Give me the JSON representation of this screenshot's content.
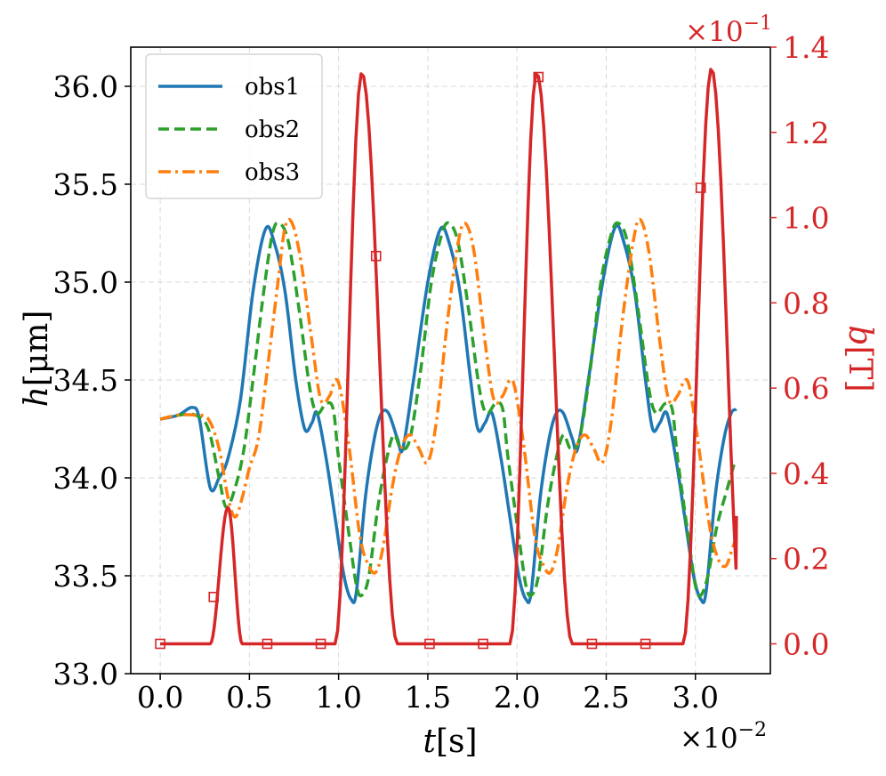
{
  "chart_data": {
    "type": "line",
    "title": "",
    "xlabel": {
      "var": "t",
      "unit": "[s]"
    },
    "ylabel_left": {
      "var": "h",
      "unit": "[μm]"
    },
    "ylabel_right": {
      "var": "b",
      "unit": "[T]"
    },
    "x_scale_label": "×10",
    "x_scale_exp": "−2",
    "y_right_scale_label": "×10",
    "y_right_scale_exp": "−1",
    "xlim": [
      -0.165,
      3.42
    ],
    "ylim_left": [
      33.0,
      36.2
    ],
    "ylim_right": [
      -0.07,
      1.4
    ],
    "x_ticks": [
      0.0,
      0.5,
      1.0,
      1.5,
      2.0,
      2.5,
      3.0
    ],
    "x_tick_labels": [
      "0.0",
      "0.5",
      "1.0",
      "1.5",
      "2.0",
      "2.5",
      "3.0"
    ],
    "y_left_ticks": [
      33.0,
      33.5,
      34.0,
      34.5,
      35.0,
      35.5,
      36.0
    ],
    "y_left_tick_labels": [
      "33.0",
      "33.5",
      "34.0",
      "34.5",
      "35.0",
      "35.5",
      "36.0"
    ],
    "y_right_ticks": [
      0.0,
      0.2,
      0.4,
      0.6,
      0.8,
      1.0,
      1.2,
      1.4
    ],
    "y_right_tick_labels": [
      "0.0",
      "0.2",
      "0.4",
      "0.6",
      "0.8",
      "1.0",
      "1.2",
      "1.4"
    ],
    "grid": true,
    "legend_position": "upper-left",
    "colors": {
      "obs1": "#1f77b4",
      "obs2": "#2ca02c",
      "obs3": "#ff7f0e",
      "b": "#d62728",
      "grid": "#d9d9d9"
    },
    "series_left": [
      {
        "name": "obs1",
        "style": "solid",
        "points": [
          [
            0.0,
            34.3
          ],
          [
            0.1,
            34.32
          ],
          [
            0.18,
            34.36
          ],
          [
            0.22,
            34.3
          ],
          [
            0.28,
            33.95
          ],
          [
            0.33,
            34.0
          ],
          [
            0.38,
            34.1
          ],
          [
            0.45,
            34.4
          ],
          [
            0.52,
            34.95
          ],
          [
            0.59,
            35.27
          ],
          [
            0.64,
            35.2
          ],
          [
            0.7,
            34.95
          ],
          [
            0.76,
            34.5
          ],
          [
            0.81,
            34.25
          ],
          [
            0.85,
            34.28
          ],
          [
            0.88,
            34.33
          ],
          [
            0.93,
            34.1
          ],
          [
            0.98,
            33.8
          ],
          [
            1.03,
            33.5
          ],
          [
            1.07,
            33.38
          ],
          [
            1.1,
            33.42
          ],
          [
            1.15,
            33.9
          ],
          [
            1.2,
            34.2
          ],
          [
            1.24,
            34.33
          ],
          [
            1.28,
            34.33
          ],
          [
            1.33,
            34.2
          ],
          [
            1.36,
            34.15
          ],
          [
            1.42,
            34.5
          ],
          [
            1.5,
            35.0
          ],
          [
            1.57,
            35.27
          ],
          [
            1.62,
            35.2
          ],
          [
            1.68,
            34.95
          ],
          [
            1.74,
            34.5
          ],
          [
            1.78,
            34.25
          ],
          [
            1.82,
            34.28
          ],
          [
            1.86,
            34.33
          ],
          [
            1.91,
            34.1
          ],
          [
            1.96,
            33.8
          ],
          [
            2.01,
            33.5
          ],
          [
            2.05,
            33.38
          ],
          [
            2.08,
            33.42
          ],
          [
            2.13,
            33.9
          ],
          [
            2.18,
            34.2
          ],
          [
            2.22,
            34.33
          ],
          [
            2.26,
            34.33
          ],
          [
            2.31,
            34.2
          ],
          [
            2.34,
            34.15
          ],
          [
            2.4,
            34.5
          ],
          [
            2.48,
            35.0
          ],
          [
            2.55,
            35.28
          ],
          [
            2.6,
            35.2
          ],
          [
            2.66,
            34.95
          ],
          [
            2.72,
            34.5
          ],
          [
            2.76,
            34.25
          ],
          [
            2.8,
            34.28
          ],
          [
            2.84,
            34.33
          ],
          [
            2.89,
            34.1
          ],
          [
            2.94,
            33.8
          ],
          [
            2.99,
            33.5
          ],
          [
            3.03,
            33.38
          ],
          [
            3.06,
            33.42
          ],
          [
            3.11,
            33.9
          ],
          [
            3.16,
            34.2
          ],
          [
            3.2,
            34.33
          ],
          [
            3.23,
            34.35
          ]
        ]
      },
      {
        "name": "obs2",
        "style": "dashed",
        "points": [
          [
            0.0,
            34.3
          ],
          [
            0.1,
            34.32
          ],
          [
            0.2,
            34.32
          ],
          [
            0.27,
            34.25
          ],
          [
            0.33,
            34.0
          ],
          [
            0.37,
            33.85
          ],
          [
            0.42,
            33.95
          ],
          [
            0.47,
            34.15
          ],
          [
            0.52,
            34.5
          ],
          [
            0.58,
            34.95
          ],
          [
            0.63,
            35.25
          ],
          [
            0.67,
            35.3
          ],
          [
            0.72,
            35.2
          ],
          [
            0.78,
            34.85
          ],
          [
            0.84,
            34.45
          ],
          [
            0.88,
            34.33
          ],
          [
            0.93,
            34.38
          ],
          [
            0.97,
            34.35
          ],
          [
            1.0,
            34.1
          ],
          [
            1.06,
            33.7
          ],
          [
            1.1,
            33.45
          ],
          [
            1.13,
            33.4
          ],
          [
            1.17,
            33.5
          ],
          [
            1.22,
            33.85
          ],
          [
            1.27,
            34.1
          ],
          [
            1.31,
            34.22
          ],
          [
            1.35,
            34.15
          ],
          [
            1.4,
            34.2
          ],
          [
            1.46,
            34.55
          ],
          [
            1.52,
            35.0
          ],
          [
            1.58,
            35.25
          ],
          [
            1.62,
            35.3
          ],
          [
            1.67,
            35.2
          ],
          [
            1.73,
            34.85
          ],
          [
            1.79,
            34.45
          ],
          [
            1.83,
            34.33
          ],
          [
            1.88,
            34.38
          ],
          [
            1.92,
            34.35
          ],
          [
            1.95,
            34.1
          ],
          [
            2.01,
            33.7
          ],
          [
            2.05,
            33.45
          ],
          [
            2.08,
            33.4
          ],
          [
            2.12,
            33.5
          ],
          [
            2.17,
            33.85
          ],
          [
            2.22,
            34.1
          ],
          [
            2.26,
            34.22
          ],
          [
            2.3,
            34.15
          ],
          [
            2.35,
            34.2
          ],
          [
            2.41,
            34.55
          ],
          [
            2.47,
            35.0
          ],
          [
            2.53,
            35.25
          ],
          [
            2.57,
            35.3
          ],
          [
            2.62,
            35.2
          ],
          [
            2.68,
            34.85
          ],
          [
            2.74,
            34.45
          ],
          [
            2.78,
            34.33
          ],
          [
            2.83,
            34.38
          ],
          [
            2.87,
            34.35
          ],
          [
            2.9,
            34.1
          ],
          [
            2.96,
            33.7
          ],
          [
            3.0,
            33.45
          ],
          [
            3.03,
            33.4
          ],
          [
            3.07,
            33.5
          ],
          [
            3.12,
            33.75
          ],
          [
            3.18,
            33.95
          ],
          [
            3.22,
            34.08
          ]
        ]
      },
      {
        "name": "obs3",
        "style": "dashdot",
        "points": [
          [
            0.0,
            34.3
          ],
          [
            0.1,
            34.32
          ],
          [
            0.2,
            34.32
          ],
          [
            0.27,
            34.3
          ],
          [
            0.33,
            34.15
          ],
          [
            0.38,
            33.9
          ],
          [
            0.42,
            33.8
          ],
          [
            0.46,
            33.9
          ],
          [
            0.5,
            34.05
          ],
          [
            0.55,
            34.2
          ],
          [
            0.6,
            34.55
          ],
          [
            0.66,
            35.0
          ],
          [
            0.7,
            35.28
          ],
          [
            0.74,
            35.3
          ],
          [
            0.79,
            35.1
          ],
          [
            0.85,
            34.7
          ],
          [
            0.9,
            34.4
          ],
          [
            0.95,
            34.42
          ],
          [
            0.98,
            34.5
          ],
          [
            1.01,
            34.45
          ],
          [
            1.06,
            34.15
          ],
          [
            1.12,
            33.7
          ],
          [
            1.17,
            33.55
          ],
          [
            1.21,
            33.52
          ],
          [
            1.25,
            33.65
          ],
          [
            1.3,
            33.95
          ],
          [
            1.35,
            34.15
          ],
          [
            1.4,
            34.22
          ],
          [
            1.45,
            34.15
          ],
          [
            1.5,
            34.08
          ],
          [
            1.55,
            34.3
          ],
          [
            1.61,
            34.8
          ],
          [
            1.67,
            35.2
          ],
          [
            1.71,
            35.3
          ],
          [
            1.76,
            35.15
          ],
          [
            1.82,
            34.7
          ],
          [
            1.87,
            34.4
          ],
          [
            1.92,
            34.42
          ],
          [
            1.96,
            34.5
          ],
          [
            1.99,
            34.45
          ],
          [
            2.04,
            34.15
          ],
          [
            2.1,
            33.7
          ],
          [
            2.15,
            33.55
          ],
          [
            2.19,
            33.52
          ],
          [
            2.23,
            33.65
          ],
          [
            2.28,
            33.95
          ],
          [
            2.33,
            34.15
          ],
          [
            2.38,
            34.22
          ],
          [
            2.43,
            34.15
          ],
          [
            2.48,
            34.08
          ],
          [
            2.53,
            34.3
          ],
          [
            2.59,
            34.8
          ],
          [
            2.65,
            35.2
          ],
          [
            2.69,
            35.32
          ],
          [
            2.74,
            35.15
          ],
          [
            2.8,
            34.7
          ],
          [
            2.85,
            34.4
          ],
          [
            2.9,
            34.42
          ],
          [
            2.94,
            34.5
          ],
          [
            2.97,
            34.45
          ],
          [
            3.02,
            34.15
          ],
          [
            3.08,
            33.75
          ],
          [
            3.13,
            33.58
          ],
          [
            3.17,
            33.55
          ],
          [
            3.2,
            33.62
          ],
          [
            3.23,
            33.7
          ]
        ]
      }
    ],
    "series_right": {
      "name": "b",
      "pulses": [
        {
          "start": 0.28,
          "peak": 0.38,
          "end": 0.46,
          "height": 0.32
        },
        {
          "start": 0.98,
          "peak": 1.13,
          "end": 1.33,
          "height": 1.34
        },
        {
          "start": 1.96,
          "peak": 2.11,
          "end": 2.31,
          "height": 1.34
        },
        {
          "start": 2.93,
          "peak": 3.09,
          "end": 3.27,
          "height": 1.35
        }
      ],
      "x_end": 3.23,
      "y_end": 0.3,
      "markers": [
        [
          0.0,
          0.0
        ],
        [
          0.3,
          0.11
        ],
        [
          0.6,
          0.0
        ],
        [
          0.9,
          0.0
        ],
        [
          1.21,
          0.91
        ],
        [
          1.51,
          0.0
        ],
        [
          1.81,
          0.0
        ],
        [
          2.12,
          1.33
        ],
        [
          2.42,
          0.0
        ],
        [
          2.72,
          0.0
        ],
        [
          3.03,
          1.07
        ]
      ]
    }
  }
}
